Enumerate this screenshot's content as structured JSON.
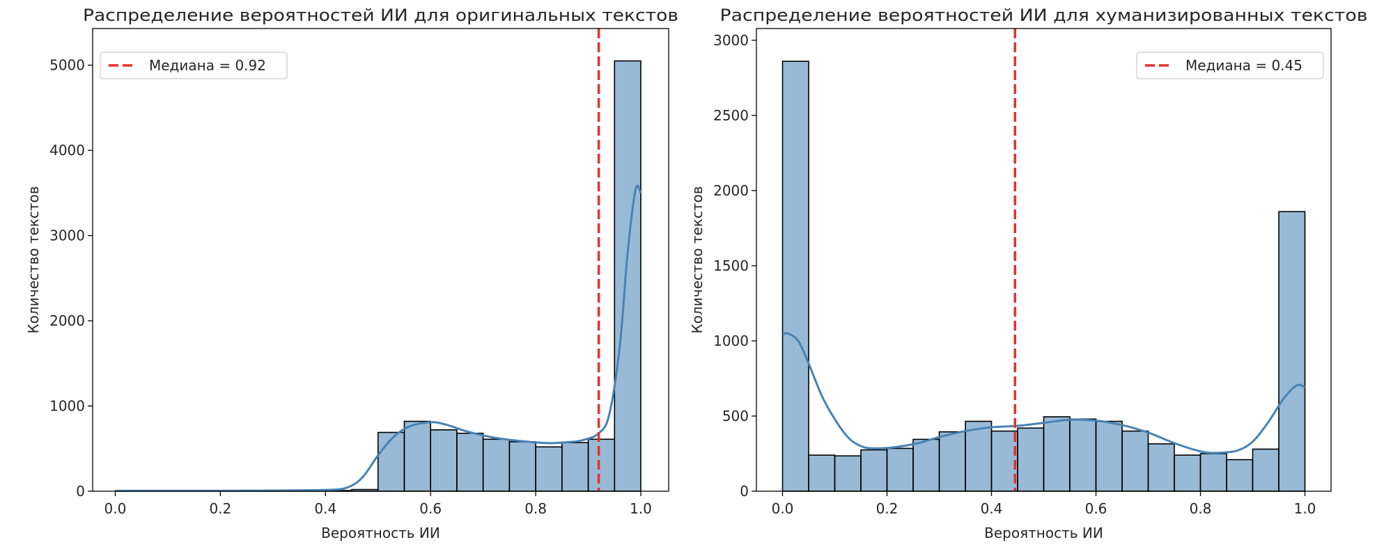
{
  "chart_data": [
    {
      "type": "bar",
      "title": "Распределение вероятностей ИИ для оригинальных текстов",
      "xlabel": "Вероятность ИИ",
      "ylabel": "Количество текстов",
      "xlim": [
        -0.043,
        1.053
      ],
      "ylim": [
        0,
        5430
      ],
      "xticks": [
        "0.0",
        "0.2",
        "0.4",
        "0.6",
        "0.8",
        "1.0"
      ],
      "yticks": [
        "0",
        "1000",
        "2000",
        "3000",
        "4000",
        "5000"
      ],
      "grid": false,
      "bar_color": "#4682b4",
      "bins": {
        "edges": [
          0.0,
          0.05,
          0.1,
          0.15,
          0.2,
          0.25,
          0.3,
          0.35,
          0.4,
          0.45,
          0.5,
          0.55,
          0.6,
          0.65,
          0.7,
          0.75,
          0.8,
          0.85,
          0.9,
          0.95,
          1.0
        ],
        "values": [
          3,
          2,
          4,
          2,
          3,
          2,
          4,
          5,
          8,
          20,
          690,
          820,
          720,
          680,
          610,
          580,
          520,
          570,
          610,
          5050
        ]
      },
      "kde": {
        "x": [
          0.0,
          0.1,
          0.2,
          0.3,
          0.4,
          0.44,
          0.47,
          0.5,
          0.53,
          0.56,
          0.6,
          0.63,
          0.67,
          0.72,
          0.77,
          0.82,
          0.86,
          0.89,
          0.92,
          0.94,
          0.96,
          0.975,
          0.99,
          1.0
        ],
        "y": [
          5,
          5,
          5,
          8,
          15,
          40,
          160,
          420,
          640,
          760,
          810,
          780,
          700,
          630,
          590,
          565,
          575,
          600,
          680,
          900,
          1700,
          2800,
          3540,
          3500
        ]
      },
      "median": {
        "value": 0.92,
        "label": "Медиана = 0.92",
        "color": "#e8302a"
      },
      "legend_position": "top-left"
    },
    {
      "type": "bar",
      "title": "Распределение вероятностей ИИ для хуманизированных текстов",
      "xlabel": "Вероятность ИИ",
      "ylabel": "Количество текстов",
      "xlim": [
        -0.05,
        1.05
      ],
      "ylim": [
        0,
        3078
      ],
      "xticks": [
        "0.0",
        "0.2",
        "0.4",
        "0.6",
        "0.8",
        "1.0"
      ],
      "yticks": [
        "0",
        "500",
        "1000",
        "1500",
        "2000",
        "2500",
        "3000"
      ],
      "grid": false,
      "bar_color": "#4682b4",
      "bins": {
        "edges": [
          0.0,
          0.05,
          0.1,
          0.15,
          0.2,
          0.25,
          0.3,
          0.35,
          0.4,
          0.45,
          0.5,
          0.55,
          0.6,
          0.65,
          0.7,
          0.75,
          0.8,
          0.85,
          0.9,
          0.95,
          1.0
        ],
        "values": [
          2860,
          240,
          235,
          275,
          285,
          345,
          395,
          465,
          400,
          420,
          495,
          480,
          465,
          400,
          315,
          240,
          250,
          210,
          280,
          1860
        ]
      },
      "kde": {
        "x": [
          0.0,
          0.01,
          0.03,
          0.05,
          0.08,
          0.12,
          0.15,
          0.18,
          0.22,
          0.26,
          0.3,
          0.35,
          0.4,
          0.45,
          0.5,
          0.55,
          0.6,
          0.65,
          0.7,
          0.75,
          0.8,
          0.83,
          0.87,
          0.9,
          0.93,
          0.96,
          0.985,
          1.0
        ],
        "y": [
          1040,
          1050,
          1000,
          850,
          600,
          380,
          300,
          285,
          295,
          320,
          360,
          400,
          425,
          435,
          455,
          475,
          470,
          440,
          390,
          320,
          265,
          255,
          270,
          330,
          460,
          620,
          705,
          690
        ]
      },
      "median": {
        "value": 0.445,
        "label": "Медиана = 0.45",
        "color": "#e8302a"
      },
      "legend_position": "top-right"
    }
  ]
}
